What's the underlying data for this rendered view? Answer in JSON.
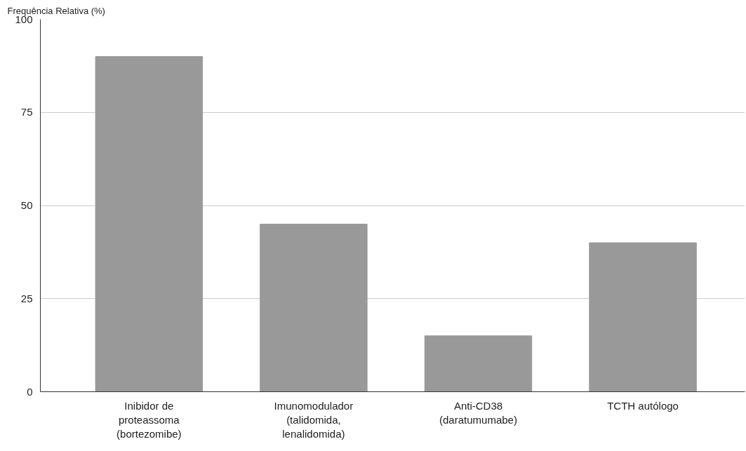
{
  "chart_data": {
    "type": "bar",
    "ylabel": "Frequência Relativa (%)",
    "categories": [
      "Inibidor de proteassoma (bortezomibe)",
      "Imunomodulador (talidomida, lenalidomida)",
      "Anti-CD38 (daratumumabe)",
      "TCTH autólogo"
    ],
    "values": [
      90,
      45,
      15,
      40
    ],
    "color": "#999999",
    "ylim": [
      0,
      100
    ],
    "yticks": [
      0,
      25,
      50,
      75,
      100
    ],
    "grid": "y"
  }
}
